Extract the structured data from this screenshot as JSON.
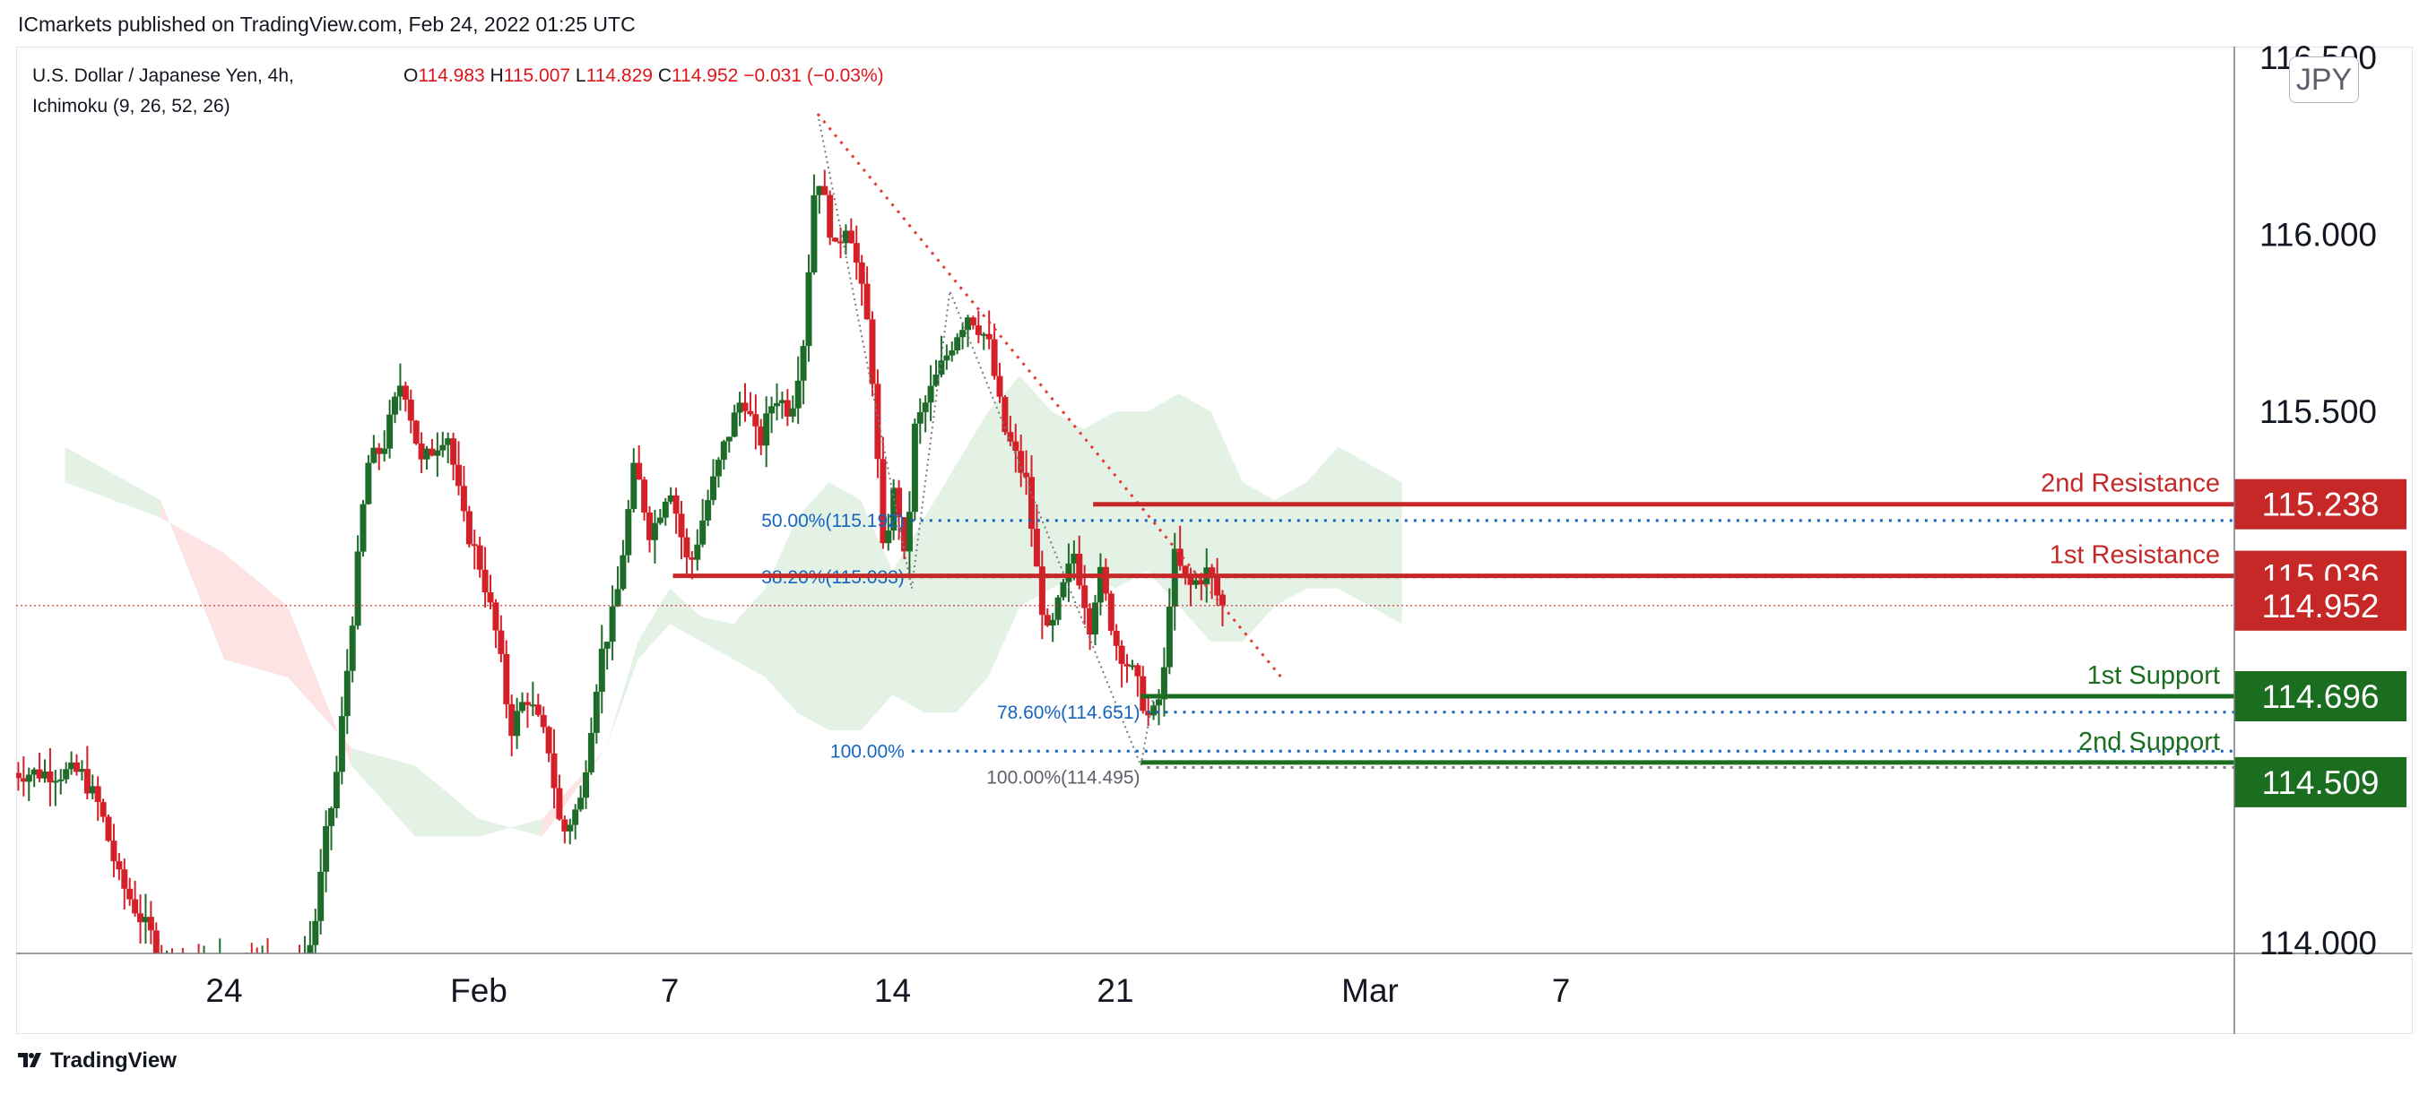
{
  "header": {
    "publisher_line": "ICmarkets published on TradingView.com, Feb 24, 2022 01:25 UTC"
  },
  "legend": {
    "symbol": "U.S. Dollar / Japanese Yen, 4h,",
    "indicator": "Ichimoku (9, 26, 52, 26)",
    "open_label": "O",
    "open": "114.983",
    "high_label": "H",
    "high": "115.007",
    "low_label": "L",
    "low": "114.829",
    "close_label": "C",
    "close": "114.952",
    "change": "−0.031 (−0.03%)"
  },
  "currency": "JPY",
  "footer": {
    "brand": "TradingView",
    "logo_icon": "tradingview-logo-icon"
  },
  "colors": {
    "bull": "#1e6b2a",
    "bear": "#d32029",
    "resistance": "#c62828",
    "support": "#1b6e20",
    "fib": "#1565c0",
    "cloud_bull": "#e3f2e5",
    "cloud_bear": "#fde3e3",
    "trendline": "#e53935"
  },
  "chart_data": {
    "type": "candlestick",
    "instrument": "U.S. Dollar / Japanese Yen",
    "timeframe": "4h",
    "ylim": [
      113.97,
      116.53
    ],
    "y_ticks": [
      {
        "value": 114.0,
        "label": "114.000"
      },
      {
        "value": 115.5,
        "label": "115.500"
      },
      {
        "value": 116.0,
        "label": "116.000"
      },
      {
        "value": 116.5,
        "label": "116.500"
      }
    ],
    "x_ticks": [
      {
        "label": "24",
        "day": 0
      },
      {
        "label": "Feb",
        "day": 8
      },
      {
        "label": "7",
        "day": 14
      },
      {
        "label": "14",
        "day": 21
      },
      {
        "label": "21",
        "day": 28
      },
      {
        "label": "Mar",
        "day": 36
      },
      {
        "label": "7",
        "day": 42
      }
    ],
    "close_anchors": [
      [
        -4.5,
        114.48
      ],
      [
        -3.9,
        114.38
      ],
      [
        -3.3,
        114.18
      ],
      [
        -2.5,
        114.05
      ],
      [
        -1.7,
        113.93
      ],
      [
        -0.5,
        113.92
      ],
      [
        0.6,
        113.96
      ],
      [
        1.6,
        113.95
      ],
      [
        2.3,
        113.9
      ],
      [
        2.8,
        114.02
      ],
      [
        3.2,
        114.3
      ],
      [
        3.5,
        114.45
      ],
      [
        3.9,
        114.8
      ],
      [
        4.5,
        115.35
      ],
      [
        5.0,
        115.4
      ],
      [
        5.6,
        115.6
      ],
      [
        6.2,
        115.35
      ],
      [
        7.0,
        115.45
      ],
      [
        7.5,
        115.2
      ],
      [
        8.1,
        115.05
      ],
      [
        8.6,
        114.85
      ],
      [
        9.0,
        114.6
      ],
      [
        9.5,
        114.7
      ],
      [
        10.2,
        114.55
      ],
      [
        10.6,
        114.3
      ],
      [
        11.2,
        114.4
      ],
      [
        11.8,
        114.8
      ],
      [
        12.3,
        114.95
      ],
      [
        12.9,
        115.35
      ],
      [
        13.4,
        115.15
      ],
      [
        14.0,
        115.3
      ],
      [
        14.6,
        115.05
      ],
      [
        15.2,
        115.25
      ],
      [
        15.7,
        115.4
      ],
      [
        16.3,
        115.55
      ],
      [
        16.8,
        115.4
      ],
      [
        17.3,
        115.55
      ],
      [
        17.8,
        115.5
      ],
      [
        18.2,
        115.7
      ],
      [
        18.6,
        116.2
      ],
      [
        19.2,
        115.95
      ],
      [
        19.6,
        116.05
      ],
      [
        20.3,
        115.7
      ],
      [
        20.7,
        115.1
      ],
      [
        21.1,
        115.3
      ],
      [
        21.4,
        115.05
      ],
      [
        21.7,
        115.45
      ],
      [
        22.4,
        115.6
      ],
      [
        23.0,
        115.72
      ],
      [
        23.4,
        115.78
      ],
      [
        24.0,
        115.7
      ],
      [
        24.5,
        115.45
      ],
      [
        25.2,
        115.3
      ],
      [
        25.6,
        115.0
      ],
      [
        25.9,
        114.85
      ],
      [
        26.2,
        114.95
      ],
      [
        26.7,
        115.1
      ],
      [
        27.2,
        114.9
      ],
      [
        27.5,
        115.05
      ],
      [
        28.0,
        114.85
      ],
      [
        28.6,
        114.75
      ],
      [
        29.1,
        114.62
      ],
      [
        29.5,
        114.72
      ],
      [
        29.8,
        115.1
      ],
      [
        30.3,
        115.0
      ],
      [
        30.9,
        115.05
      ],
      [
        31.2,
        114.98
      ],
      [
        31.4,
        114.952
      ]
    ],
    "kumo_span_a": [
      [
        -5,
        115.4
      ],
      [
        -2,
        115.25
      ],
      [
        0,
        114.8
      ],
      [
        2,
        114.75
      ],
      [
        4,
        114.55
      ],
      [
        6,
        114.5
      ],
      [
        8,
        114.35
      ],
      [
        10,
        114.3
      ],
      [
        12,
        114.55
      ],
      [
        13,
        114.85
      ],
      [
        14,
        115.0
      ],
      [
        15,
        114.92
      ],
      [
        16,
        114.9
      ],
      [
        17,
        115.0
      ],
      [
        18,
        115.2
      ],
      [
        19,
        115.3
      ],
      [
        20,
        115.25
      ],
      [
        21,
        115.05
      ],
      [
        22,
        115.2
      ],
      [
        23,
        115.35
      ],
      [
        24,
        115.5
      ],
      [
        25,
        115.6
      ],
      [
        26,
        115.5
      ],
      [
        27,
        115.45
      ],
      [
        28,
        115.5
      ],
      [
        29,
        115.5
      ],
      [
        30,
        115.55
      ],
      [
        31,
        115.5
      ],
      [
        32,
        115.3
      ],
      [
        33,
        115.25
      ],
      [
        34,
        115.3
      ],
      [
        35,
        115.4
      ],
      [
        36,
        115.35
      ],
      [
        37,
        115.3
      ]
    ],
    "kumo_span_b": [
      [
        -5,
        115.3
      ],
      [
        -2,
        115.2
      ],
      [
        0,
        115.1
      ],
      [
        2,
        114.95
      ],
      [
        4,
        114.5
      ],
      [
        6,
        114.3
      ],
      [
        8,
        114.3
      ],
      [
        10,
        114.35
      ],
      [
        12,
        114.55
      ],
      [
        13,
        114.8
      ],
      [
        14,
        114.9
      ],
      [
        15,
        114.85
      ],
      [
        16,
        114.8
      ],
      [
        17,
        114.75
      ],
      [
        18,
        114.65
      ],
      [
        19,
        114.6
      ],
      [
        20,
        114.6
      ],
      [
        21,
        114.7
      ],
      [
        22,
        114.65
      ],
      [
        23,
        114.65
      ],
      [
        24,
        114.75
      ],
      [
        25,
        114.95
      ],
      [
        26,
        115.0
      ],
      [
        27,
        115.05
      ],
      [
        28,
        115.0
      ],
      [
        29,
        115.05
      ],
      [
        30,
        114.95
      ],
      [
        31,
        114.85
      ],
      [
        32,
        114.85
      ],
      [
        33,
        114.95
      ],
      [
        34,
        115.0
      ],
      [
        35,
        115.0
      ],
      [
        36,
        114.95
      ],
      [
        37,
        114.9
      ]
    ],
    "annotations": {
      "resistance_2": {
        "label": "2nd Resistance",
        "price": 115.238,
        "price_label": "115.238",
        "from_day": 27.3
      },
      "resistance_1": {
        "label": "1st Resistance",
        "price": 115.036,
        "price_label": "115.036",
        "from_day": 14.1
      },
      "support_1": {
        "label": "1st Support",
        "price": 114.696,
        "price_label": "114.696",
        "from_day": 28.8
      },
      "support_2": {
        "label": "2nd Support",
        "price": 114.509,
        "price_label": "114.509",
        "from_day": 28.8
      },
      "last_price": {
        "price": 114.952,
        "price_label": "114.952"
      },
      "fib_left": [
        {
          "label": "50.00%(115.192)",
          "price": 115.192,
          "from_day": 21.6
        },
        {
          "label": "38.20%(115.033)",
          "price": 115.033,
          "from_day": 21.6
        },
        {
          "label": "100.00%",
          "price": 114.541,
          "from_day": 21.6
        }
      ],
      "fib_right": [
        {
          "label": "78.60%(114.651)",
          "price": 114.651,
          "from_day": 29.0
        },
        {
          "label": "100.00%(114.495)",
          "price": 114.495,
          "from_day": 29.0
        }
      ],
      "trendline": {
        "from": [
          18.65,
          116.34
        ],
        "to": [
          33.3,
          114.74
        ]
      },
      "zigzag": [
        [
          18.65,
          116.34
        ],
        [
          21.6,
          115.0
        ],
        [
          22.8,
          115.84
        ],
        [
          28.8,
          114.5
        ],
        [
          29.2,
          114.7
        ]
      ]
    }
  }
}
